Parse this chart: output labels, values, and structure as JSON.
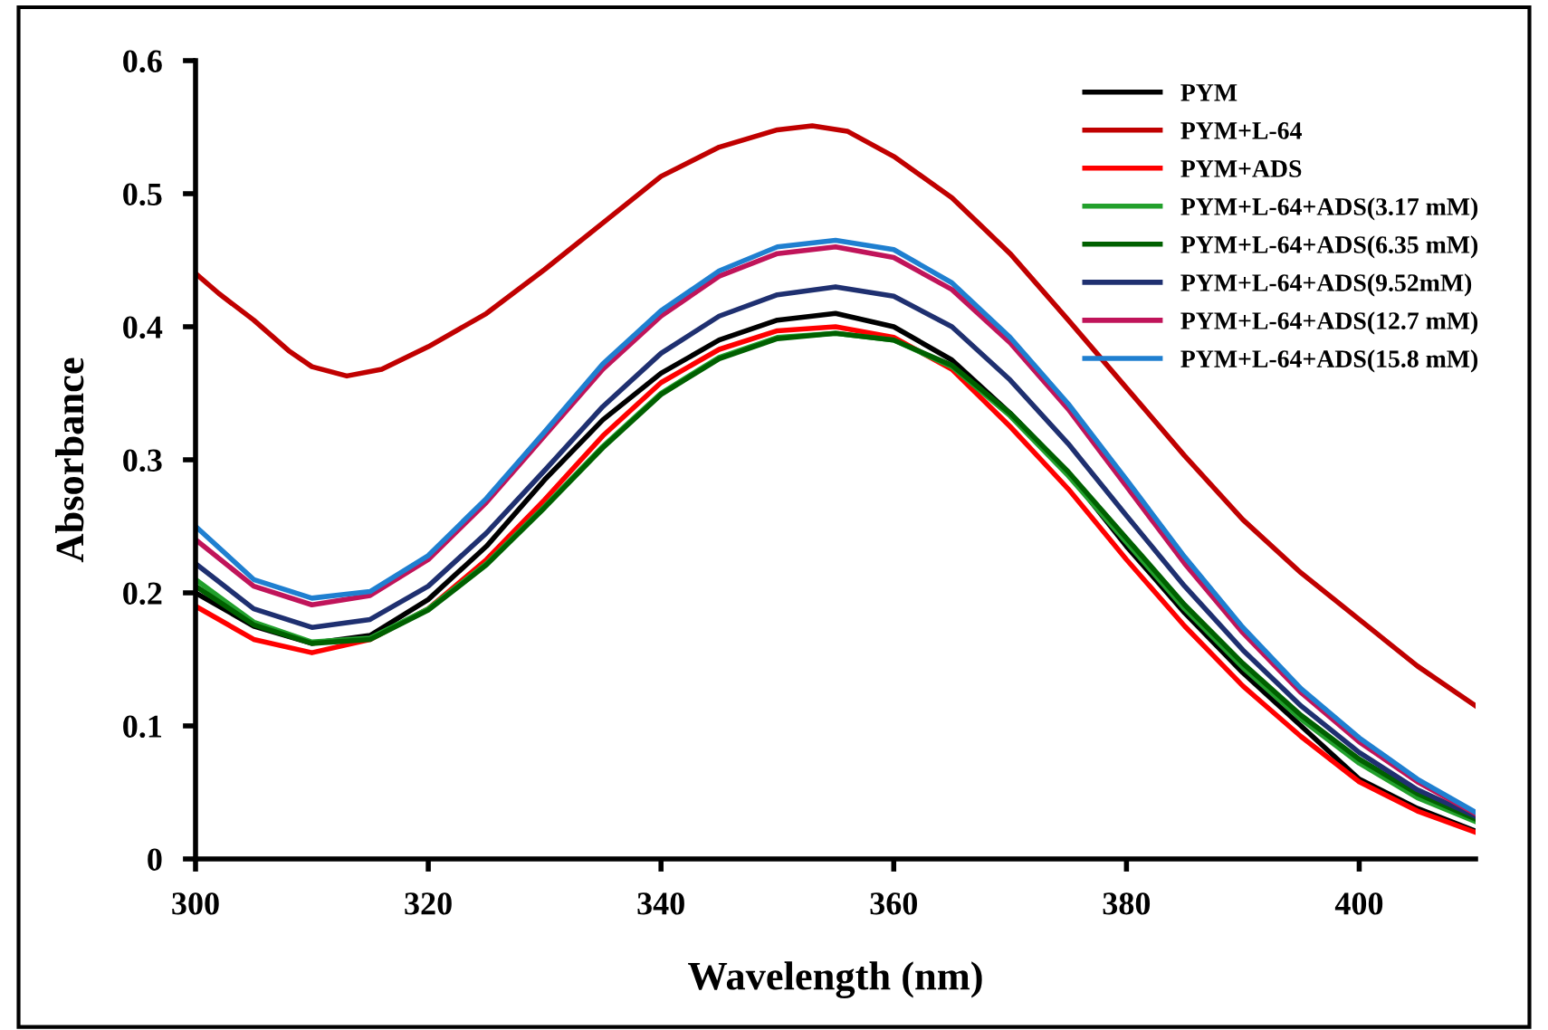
{
  "chart_data": {
    "type": "line",
    "xlabel": "Wavelength (nm)",
    "ylabel": "Absorbance",
    "x": [
      300,
      305,
      310,
      315,
      320,
      325,
      330,
      335,
      340,
      345,
      350,
      355,
      360,
      365,
      370,
      375,
      380,
      385,
      390,
      395,
      400,
      405,
      410
    ],
    "xlim": [
      300,
      410
    ],
    "xticks": [
      300,
      320,
      340,
      360,
      380,
      400
    ],
    "ylim": [
      0,
      0.6
    ],
    "yticks": [
      0,
      0.1,
      0.2,
      0.3,
      0.4,
      0.5,
      0.6
    ],
    "grid": false,
    "legend": "top right",
    "marker": "none",
    "line_style": "solid",
    "series": [
      {
        "name": "PYM",
        "color": "#000000",
        "values": [
          0.2,
          0.175,
          0.162,
          0.168,
          0.195,
          0.235,
          0.285,
          0.33,
          0.365,
          0.39,
          0.405,
          0.41,
          0.4,
          0.375,
          0.335,
          0.29,
          0.235,
          0.185,
          0.14,
          0.1,
          0.06,
          0.038,
          0.021
        ]
      },
      {
        "name": "PYM+L-64",
        "color": "#c00000",
        "x": [
          300,
          302,
          305,
          308,
          310,
          313,
          316,
          320,
          325,
          330,
          335,
          340,
          345,
          350,
          353,
          356,
          360,
          365,
          370,
          375,
          380,
          385,
          390,
          395,
          400,
          405,
          410
        ],
        "values": [
          0.44,
          0.425,
          0.405,
          0.382,
          0.37,
          0.363,
          0.368,
          0.385,
          0.41,
          0.443,
          0.478,
          0.513,
          0.535,
          0.548,
          0.551,
          0.547,
          0.528,
          0.497,
          0.455,
          0.405,
          0.354,
          0.303,
          0.255,
          0.215,
          0.18,
          0.145,
          0.115
        ]
      },
      {
        "name": "PYM+ADS",
        "color": "#ff0000",
        "values": [
          0.19,
          0.165,
          0.155,
          0.165,
          0.188,
          0.225,
          0.27,
          0.318,
          0.358,
          0.383,
          0.397,
          0.4,
          0.392,
          0.368,
          0.325,
          0.278,
          0.225,
          0.175,
          0.13,
          0.092,
          0.058,
          0.036,
          0.02
        ]
      },
      {
        "name": "PYM+L-64+ADS(3.17 mM)",
        "color": "#22a02c",
        "values": [
          0.21,
          0.178,
          0.163,
          0.166,
          0.188,
          0.222,
          0.265,
          0.31,
          0.35,
          0.377,
          0.392,
          0.395,
          0.39,
          0.37,
          0.333,
          0.288,
          0.238,
          0.188,
          0.144,
          0.105,
          0.072,
          0.046,
          0.028
        ]
      },
      {
        "name": "PYM+L-64+ADS(6.35 mM)",
        "color": "#006000",
        "values": [
          0.205,
          0.176,
          0.162,
          0.165,
          0.187,
          0.221,
          0.264,
          0.309,
          0.349,
          0.376,
          0.391,
          0.395,
          0.39,
          0.371,
          0.335,
          0.291,
          0.241,
          0.191,
          0.147,
          0.108,
          0.075,
          0.049,
          0.03
        ]
      },
      {
        "name": "PYM+L-64+ADS(9.52mM)",
        "color": "#1f3070",
        "values": [
          0.222,
          0.188,
          0.174,
          0.18,
          0.205,
          0.245,
          0.292,
          0.34,
          0.38,
          0.408,
          0.424,
          0.43,
          0.423,
          0.4,
          0.36,
          0.312,
          0.258,
          0.205,
          0.157,
          0.115,
          0.08,
          0.052,
          0.032
        ]
      },
      {
        "name": "PYM+L-64+ADS(12.7 mM)",
        "color": "#c0145a",
        "values": [
          0.24,
          0.205,
          0.191,
          0.198,
          0.225,
          0.268,
          0.318,
          0.368,
          0.408,
          0.438,
          0.455,
          0.46,
          0.452,
          0.428,
          0.388,
          0.338,
          0.28,
          0.222,
          0.17,
          0.125,
          0.088,
          0.058,
          0.034
        ]
      },
      {
        "name": "PYM+L-64+ADS(15.8 mM)",
        "color": "#1f7fd0",
        "values": [
          0.25,
          0.21,
          0.196,
          0.201,
          0.228,
          0.271,
          0.321,
          0.372,
          0.412,
          0.442,
          0.46,
          0.465,
          0.458,
          0.433,
          0.392,
          0.342,
          0.285,
          0.227,
          0.174,
          0.128,
          0.091,
          0.06,
          0.035
        ]
      }
    ]
  }
}
